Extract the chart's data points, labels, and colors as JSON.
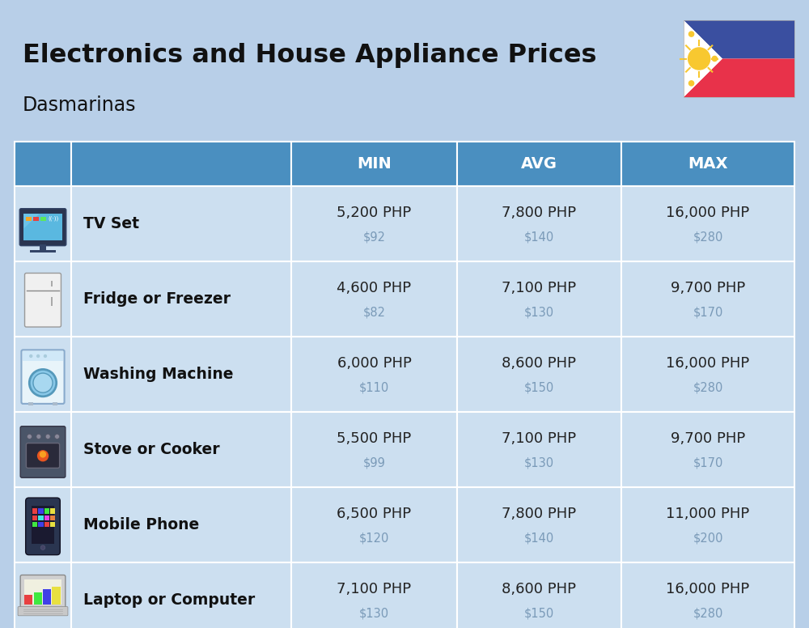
{
  "title": "Electronics and House Appliance Prices",
  "subtitle": "Dasmarinas",
  "background_color": "#b8cfe8",
  "header_color": "#4a8fc0",
  "header_text_color": "#ffffff",
  "row_bg": "#ccdff0",
  "divider_color": "#9fbdd4",
  "php_text_color": "#222222",
  "usd_text_color": "#7a9ab8",
  "name_text_color": "#111111",
  "title_color": "#111111",
  "columns": [
    "MIN",
    "AVG",
    "MAX"
  ],
  "rows": [
    {
      "name": "TV Set",
      "min_php": "5,200 PHP",
      "min_usd": "$92",
      "avg_php": "7,800 PHP",
      "avg_usd": "$140",
      "max_php": "16,000 PHP",
      "max_usd": "$280"
    },
    {
      "name": "Fridge or Freezer",
      "min_php": "4,600 PHP",
      "min_usd": "$82",
      "avg_php": "7,100 PHP",
      "avg_usd": "$130",
      "max_php": "9,700 PHP",
      "max_usd": "$170"
    },
    {
      "name": "Washing Machine",
      "min_php": "6,000 PHP",
      "min_usd": "$110",
      "avg_php": "8,600 PHP",
      "avg_usd": "$150",
      "max_php": "16,000 PHP",
      "max_usd": "$280"
    },
    {
      "name": "Stove or Cooker",
      "min_php": "5,500 PHP",
      "min_usd": "$99",
      "avg_php": "7,100 PHP",
      "avg_usd": "$130",
      "max_php": "9,700 PHP",
      "max_usd": "$170"
    },
    {
      "name": "Mobile Phone",
      "min_php": "6,500 PHP",
      "min_usd": "$120",
      "avg_php": "7,800 PHP",
      "avg_usd": "$140",
      "max_php": "11,000 PHP",
      "max_usd": "$200"
    },
    {
      "name": "Laptop or Computer",
      "min_php": "7,100 PHP",
      "min_usd": "$130",
      "avg_php": "8,600 PHP",
      "avg_usd": "$150",
      "max_php": "16,000 PHP",
      "max_usd": "$280"
    }
  ],
  "flag_blue": "#3a4fa0",
  "flag_red": "#e8324a",
  "flag_white": "#ffffff",
  "flag_yellow": "#f8c830"
}
